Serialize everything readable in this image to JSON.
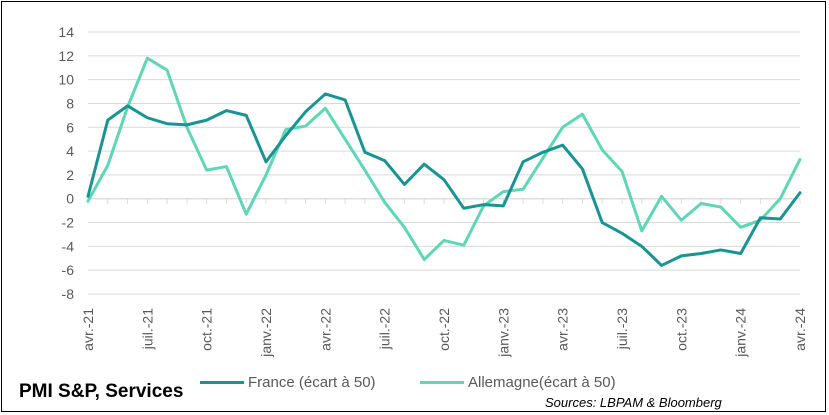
{
  "chart_data": {
    "type": "line",
    "title": "PMI S&P, Services",
    "source": "Sources: LBPAM & Bloomberg",
    "ylim": [
      -8,
      14
    ],
    "yticks": [
      14,
      12,
      10,
      8,
      6,
      4,
      2,
      0,
      -2,
      -4,
      -6,
      -8
    ],
    "grid": true,
    "legend_position": "bottom",
    "x_tick_labels": [
      "avr.-21",
      "juil.-21",
      "oct.-21",
      "janv.-22",
      "avr.-22",
      "juil.-22",
      "oct.-22",
      "janv.-23",
      "avr.-23",
      "juil.-23",
      "oct.-23",
      "janv.-24",
      "avr.-24"
    ],
    "x": [
      "avr.-21",
      "mai-21",
      "juin-21",
      "juil.-21",
      "août-21",
      "sept.-21",
      "oct.-21",
      "nov.-21",
      "déc.-21",
      "janv.-22",
      "févr.-22",
      "mars-22",
      "avr.-22",
      "mai-22",
      "juin-22",
      "juil.-22",
      "août-22",
      "sept.-22",
      "oct.-22",
      "nov.-22",
      "déc.-22",
      "janv.-23",
      "févr.-23",
      "mars-23",
      "avr.-23",
      "mai-23",
      "juin-23",
      "juil.-23",
      "août-23",
      "sept.-23",
      "oct.-23",
      "nov.-23",
      "déc.-23",
      "janv.-24",
      "févr.-24",
      "mars-24",
      "avr.-24"
    ],
    "series": [
      {
        "name": "France (écart à 50)",
        "color": "#1a9393",
        "values": [
          0.2,
          6.6,
          7.8,
          6.8,
          6.3,
          6.2,
          6.6,
          7.4,
          7.0,
          3.1,
          5.3,
          7.3,
          8.8,
          8.3,
          3.9,
          3.2,
          1.2,
          2.9,
          1.6,
          -0.8,
          -0.5,
          -0.6,
          3.1,
          3.9,
          4.5,
          2.5,
          -2.0,
          -2.9,
          -4.0,
          -5.6,
          -4.8,
          -4.6,
          -4.3,
          -4.6,
          -1.6,
          -1.7,
          0.5
        ]
      },
      {
        "name": "Allemagne(écart à 50)",
        "color": "#5fd6b5",
        "values": [
          -0.2,
          2.8,
          7.7,
          11.8,
          10.8,
          6.0,
          2.4,
          2.7,
          -1.3,
          2.0,
          5.8,
          6.1,
          7.6,
          5.0,
          2.4,
          -0.3,
          -2.4,
          -5.1,
          -3.5,
          -3.9,
          -0.6,
          0.6,
          0.8,
          3.4,
          6.0,
          7.1,
          4.1,
          2.3,
          -2.7,
          0.2,
          -1.8,
          -0.4,
          -0.7,
          -2.4,
          -1.8,
          0.0,
          3.3
        ]
      }
    ]
  }
}
